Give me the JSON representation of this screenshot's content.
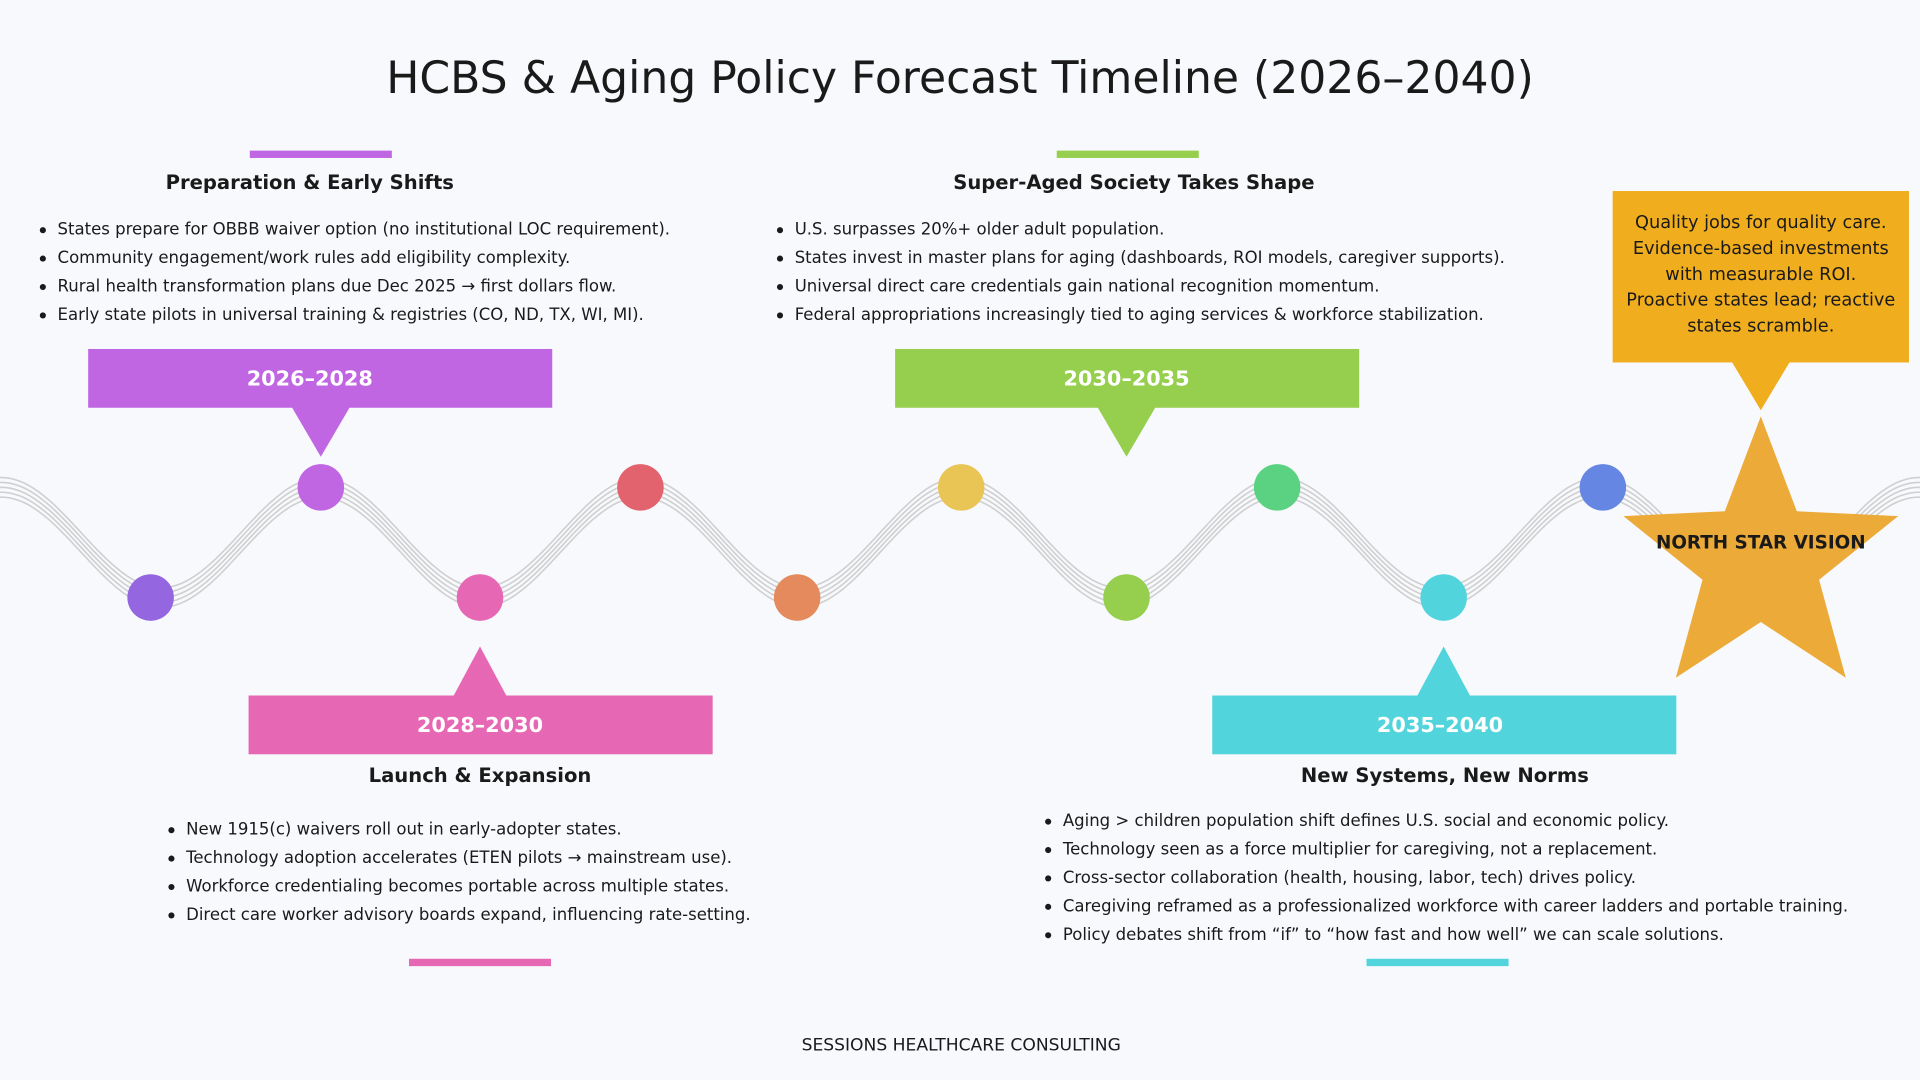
{
  "title": "HCBS & Aging Policy Forecast Timeline (2026–2040)",
  "phases": [
    {
      "period": "2026–2028",
      "heading": "Preparation & Early Shifts",
      "bullets": [
        "States prepare for OBBB waiver option (no institutional LOC requirement).",
        "Community engagement/work rules add eligibility complexity.",
        "Rural health transformation plans due Dec 2025 → first dollars flow.",
        "Early state pilots in universal training & registries (CO, ND, TX, WI, MI)."
      ]
    },
    {
      "period": "2028–2030",
      "heading": "Launch & Expansion",
      "bullets": [
        "New 1915(c) waivers roll out in early-adopter states.",
        "Technology adoption accelerates (ETEN pilots → mainstream use).",
        "Workforce credentialing becomes portable across multiple states.",
        "Direct care worker advisory boards expand, influencing rate-setting."
      ]
    },
    {
      "period": "2030–2035",
      "heading": "Super-Aged Society Takes Shape",
      "bullets": [
        "U.S. surpasses 20%+ older adult population.",
        "States invest in master plans for aging (dashboards, ROI models, caregiver supports).",
        "Universal direct care credentials gain national recognition momentum.",
        "Federal appropriations increasingly tied to aging services & workforce stabilization."
      ]
    },
    {
      "period": "2035–2040",
      "heading": "New Systems, New Norms",
      "bullets": [
        "Aging > children population shift defines U.S. social and economic policy.",
        "Technology seen as a force multiplier for caregiving, not a replacement.",
        "Cross-sector collaboration (health, housing, labor, tech) drives policy.",
        "Caregiving reframed as a professionalized workforce with career ladders and portable training.",
        "Policy debates shift from “if” to “how fast and how well” we can scale solutions."
      ]
    }
  ],
  "north_star": {
    "label": "NORTH STAR VISION",
    "lines": [
      "Quality jobs for quality care.",
      "Evidence-based investments",
      "with measurable ROI.",
      "Proactive states lead; reactive",
      "states scramble."
    ]
  },
  "footer": "SESSIONS HEALTHCARE CONSULTING"
}
